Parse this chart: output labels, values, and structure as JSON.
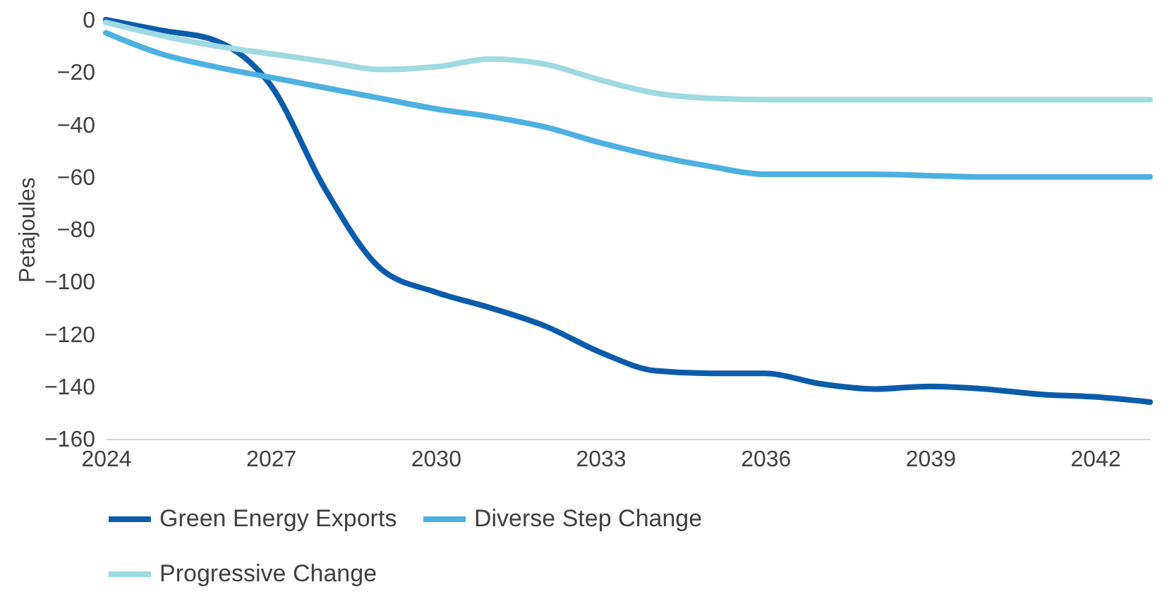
{
  "chart_data": {
    "type": "line",
    "ylabel": "Petajoules",
    "x": [
      2024,
      2025,
      2026,
      2027,
      2028,
      2029,
      2030,
      2031,
      2032,
      2033,
      2034,
      2035,
      2036,
      2037,
      2038,
      2039,
      2040,
      2041,
      2042,
      2043
    ],
    "xlim": [
      2024,
      2043
    ],
    "xticks": [
      2024,
      2027,
      2030,
      2033,
      2036,
      2039,
      2042
    ],
    "ylim": [
      -160,
      0
    ],
    "yticks": [
      -160,
      -140,
      -120,
      -100,
      -80,
      -60,
      -40,
      -20,
      0
    ],
    "grid": false,
    "legend": "bottom",
    "series": [
      {
        "name": "Green Energy Exports",
        "color": "#0a5cab",
        "values": [
          0,
          -4,
          -8,
          -25,
          -65,
          -95,
          -104,
          -110,
          -117,
          -127,
          -134,
          -135,
          -135,
          -139,
          -141,
          -140,
          -141,
          -143,
          -144,
          -146
        ]
      },
      {
        "name": "Diverse Step Change",
        "color": "#4cb1e1",
        "values": [
          -5,
          -13,
          -18,
          -22,
          -26,
          -30,
          -34,
          -37,
          -41,
          -47,
          -52,
          -56,
          -59,
          -59,
          -59,
          -59.5,
          -60,
          -60,
          -60,
          -60
        ]
      },
      {
        "name": "Progressive Change",
        "color": "#9fd9e2",
        "values": [
          -1,
          -6,
          -10,
          -13,
          -16,
          -19,
          -18,
          -15,
          -17,
          -23,
          -28,
          -30,
          -30.5,
          -30.5,
          -30.5,
          -30.5,
          -30.5,
          -30.5,
          -30.5,
          -30.5
        ]
      }
    ]
  }
}
